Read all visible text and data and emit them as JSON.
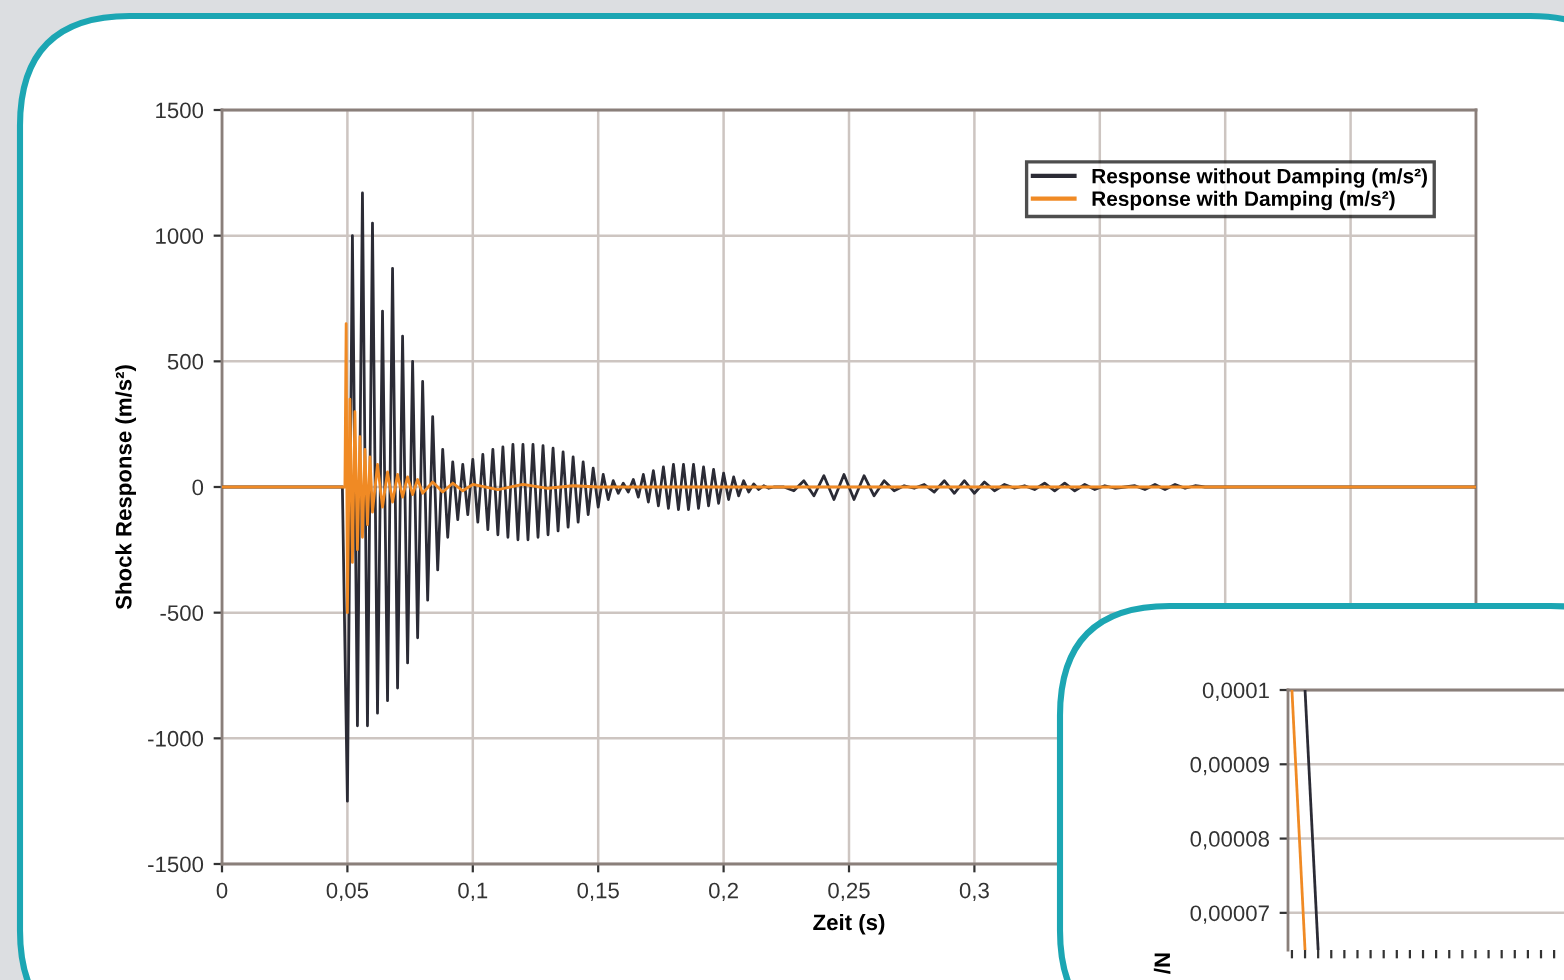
{
  "chart_data": [
    {
      "type": "line",
      "xlabel": "Zeit (s)",
      "ylabel": "Shock Response (m/s²)",
      "xlim": [
        0,
        0.5
      ],
      "ylim": [
        -1500,
        1500
      ],
      "xticks": [
        0,
        {
          "value": 0.05,
          "label": "0,05"
        },
        {
          "value": 0.1,
          "label": "0,1"
        },
        {
          "value": 0.15,
          "label": "0,15"
        },
        {
          "value": 0.2,
          "label": "0,2"
        },
        {
          "value": 0.25,
          "label": "0,25"
        },
        {
          "value": 0.3,
          "label": "0,3"
        },
        {
          "value": 0.35,
          "label": null
        },
        {
          "value": 0.4,
          "label": null
        },
        {
          "value": 0.45,
          "label": null
        },
        {
          "value": 0.5,
          "label": null
        }
      ],
      "yticks": [
        -1500,
        -1000,
        -500,
        0,
        500,
        1000,
        1500
      ],
      "grid": true,
      "legend": "top right",
      "series": [
        {
          "name": "Response without Damping (m/s²)",
          "color": "#2b2b35",
          "x": [
            0,
            0.048,
            0.05,
            0.052,
            0.054,
            0.056,
            0.058,
            0.06,
            0.062,
            0.064,
            0.066,
            0.068,
            0.07,
            0.072,
            0.074,
            0.076,
            0.078,
            0.08,
            0.082,
            0.084,
            0.086,
            0.088,
            0.09,
            0.092,
            0.094,
            0.096,
            0.098,
            0.1,
            0.102,
            0.104,
            0.106,
            0.108,
            0.11,
            0.112,
            0.114,
            0.116,
            0.118,
            0.12,
            0.122,
            0.124,
            0.126,
            0.128,
            0.13,
            0.132,
            0.134,
            0.136,
            0.138,
            0.14,
            0.142,
            0.144,
            0.146,
            0.148,
            0.15,
            0.152,
            0.154,
            0.156,
            0.158,
            0.16,
            0.162,
            0.164,
            0.166,
            0.168,
            0.17,
            0.172,
            0.174,
            0.176,
            0.178,
            0.18,
            0.182,
            0.184,
            0.186,
            0.188,
            0.19,
            0.192,
            0.194,
            0.196,
            0.198,
            0.2,
            0.202,
            0.204,
            0.206,
            0.208,
            0.21,
            0.212,
            0.214,
            0.216,
            0.218,
            0.22,
            0.224,
            0.228,
            0.232,
            0.236,
            0.24,
            0.244,
            0.248,
            0.252,
            0.256,
            0.26,
            0.264,
            0.268,
            0.272,
            0.276,
            0.28,
            0.284,
            0.288,
            0.292,
            0.296,
            0.3,
            0.304,
            0.308,
            0.312,
            0.316,
            0.32,
            0.324,
            0.328,
            0.332,
            0.336,
            0.34,
            0.344,
            0.348,
            0.352,
            0.356,
            0.36,
            0.364,
            0.368,
            0.372,
            0.376,
            0.38,
            0.384,
            0.388,
            0.392,
            0.5
          ],
          "values": [
            0,
            0,
            -1250,
            1000,
            -950,
            1170,
            -950,
            1050,
            -900,
            700,
            -850,
            870,
            -800,
            600,
            -700,
            500,
            -600,
            420,
            -450,
            280,
            -330,
            150,
            -200,
            100,
            -130,
            90,
            -110,
            110,
            -140,
            130,
            -170,
            150,
            -190,
            160,
            -200,
            170,
            -210,
            170,
            -210,
            170,
            -200,
            165,
            -190,
            155,
            -175,
            140,
            -160,
            120,
            -140,
            100,
            -110,
            75,
            -80,
            50,
            -50,
            25,
            -25,
            15,
            -20,
            30,
            -40,
            50,
            -60,
            65,
            -75,
            80,
            -85,
            90,
            -90,
            90,
            -90,
            90,
            -85,
            80,
            -75,
            70,
            -65,
            55,
            -50,
            40,
            -35,
            25,
            -20,
            12,
            -10,
            5,
            -5,
            0,
            0,
            -15,
            25,
            -35,
            45,
            -50,
            50,
            -50,
            45,
            -35,
            25,
            -15,
            5,
            -5,
            10,
            -20,
            25,
            -25,
            25,
            -25,
            20,
            -15,
            10,
            -5,
            5,
            -10,
            15,
            -15,
            15,
            -15,
            10,
            -10,
            5,
            -5,
            0,
            5,
            -10,
            10,
            -10,
            10,
            -5,
            5,
            0,
            0
          ]
        },
        {
          "name": "Response with Damping (m/s²)",
          "color": "#f08a24",
          "x": [
            0,
            0.049,
            0.0495,
            0.05,
            0.051,
            0.052,
            0.053,
            0.054,
            0.055,
            0.056,
            0.057,
            0.058,
            0.059,
            0.06,
            0.062,
            0.064,
            0.066,
            0.068,
            0.07,
            0.072,
            0.074,
            0.076,
            0.078,
            0.08,
            0.084,
            0.088,
            0.092,
            0.096,
            0.1,
            0.11,
            0.12,
            0.13,
            0.14,
            0.15,
            0.5
          ],
          "values": [
            0,
            0,
            650,
            -500,
            350,
            -300,
            300,
            -250,
            200,
            -200,
            150,
            -150,
            120,
            -100,
            90,
            -80,
            60,
            -60,
            50,
            -40,
            40,
            -30,
            30,
            -25,
            20,
            -20,
            15,
            -15,
            10,
            -10,
            10,
            -5,
            5,
            0,
            0
          ]
        }
      ]
    },
    {
      "type": "line",
      "ylabel": "/N",
      "ylim": [
        6.5e-05,
        0.0001
      ],
      "categories": [
        null,
        null,
        null,
        null,
        null,
        null,
        null,
        null,
        null,
        null,
        null,
        null,
        null,
        null,
        null,
        null,
        null,
        null,
        null,
        null,
        null,
        null,
        null,
        null
      ],
      "yticks": [
        {
          "value": 7e-05,
          "label": "0,00007"
        },
        {
          "value": 8e-05,
          "label": "0,00008"
        },
        {
          "value": 9e-05,
          "label": "0,00009"
        },
        {
          "value": 0.0001,
          "label": "0,0001"
        }
      ],
      "grid": "y",
      "series": [
        {
          "color": "#f08a24",
          "values": [
            0.0001,
            6.5e-05,
            null,
            null,
            null,
            null,
            null,
            null,
            null,
            null,
            null,
            null,
            null,
            null,
            null,
            null,
            null,
            null,
            null,
            null,
            null,
            null,
            null,
            null
          ]
        },
        {
          "color": "#2b2b35",
          "values": [
            null,
            0.0001,
            6.5e-05,
            null,
            null,
            null,
            null,
            null,
            null,
            null,
            null,
            null,
            null,
            null,
            null,
            null,
            null,
            null,
            null,
            null,
            null,
            null,
            null,
            null
          ]
        }
      ]
    }
  ]
}
